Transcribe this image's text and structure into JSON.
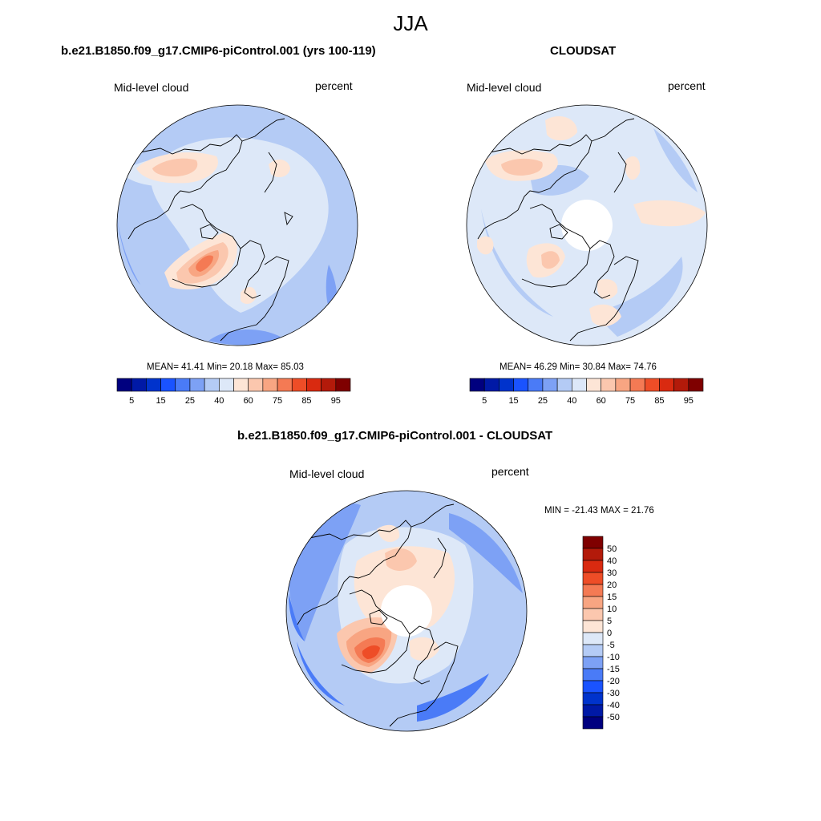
{
  "season_title": "JJA",
  "panels": [
    {
      "id": "model",
      "title": "b.e21.B1850.f09_g17.CMIP6-piControl.001 (yrs 100-119)",
      "left_label": "Mid-level cloud",
      "right_label": "percent",
      "stats": "MEAN=  41.41  Min=  20.18  Max=  85.03",
      "polar_hole": false
    },
    {
      "id": "obs",
      "title": "CLOUDSAT",
      "left_label": "Mid-level cloud",
      "right_label": "percent",
      "stats": "MEAN=  46.29  Min=  30.84  Max=  74.76",
      "polar_hole": true
    },
    {
      "id": "diff",
      "title": "b.e21.B1850.f09_g17.CMIP6-piControl.001 - CLOUDSAT",
      "left_label": "Mid-level cloud",
      "right_label": "percent",
      "stats": "MIN = -21.43 MAX =  21.76",
      "polar_hole": true
    }
  ],
  "colorbar_abs": {
    "colors": [
      "#00007f",
      "#0019a6",
      "#0033cc",
      "#1a53ff",
      "#4a7bf7",
      "#7da1f5",
      "#b4cbf5",
      "#dde8f8",
      "#fde5d6",
      "#fbc7ae",
      "#f8a582",
      "#f47a54",
      "#ee4d27",
      "#d92a10",
      "#b31a0a",
      "#7f0000"
    ],
    "labels": [
      "5",
      "15",
      "25",
      "40",
      "60",
      "75",
      "85",
      "95"
    ]
  },
  "colorbar_diff": {
    "colors": [
      "#7f0000",
      "#b31a0a",
      "#d92a10",
      "#ee4d27",
      "#f47a54",
      "#f8a582",
      "#fbc7ae",
      "#fde5d6",
      "#dde8f8",
      "#b4cbf5",
      "#7da1f5",
      "#4a7bf7",
      "#1a53ff",
      "#0033cc",
      "#0019a6",
      "#00007f"
    ],
    "labels": [
      "50",
      "40",
      "30",
      "20",
      "15",
      "10",
      "5",
      "0",
      "-5",
      "-10",
      "-15",
      "-20",
      "-30",
      "-40",
      "-50"
    ]
  },
  "map_colors": {
    "base_model": "#b4cbf5",
    "base_obs": "#dde8f8",
    "base_diff": "#b4cbf5",
    "light_blue": "#dde8f8",
    "mid_blue": "#7da1f5",
    "blue": "#4a7bf7",
    "peach": "#fde5d6",
    "salmon": "#fbc7ae",
    "orange": "#f8a582",
    "red": "#f47a54",
    "deep_red": "#ee4d27",
    "coast": "#000000"
  }
}
